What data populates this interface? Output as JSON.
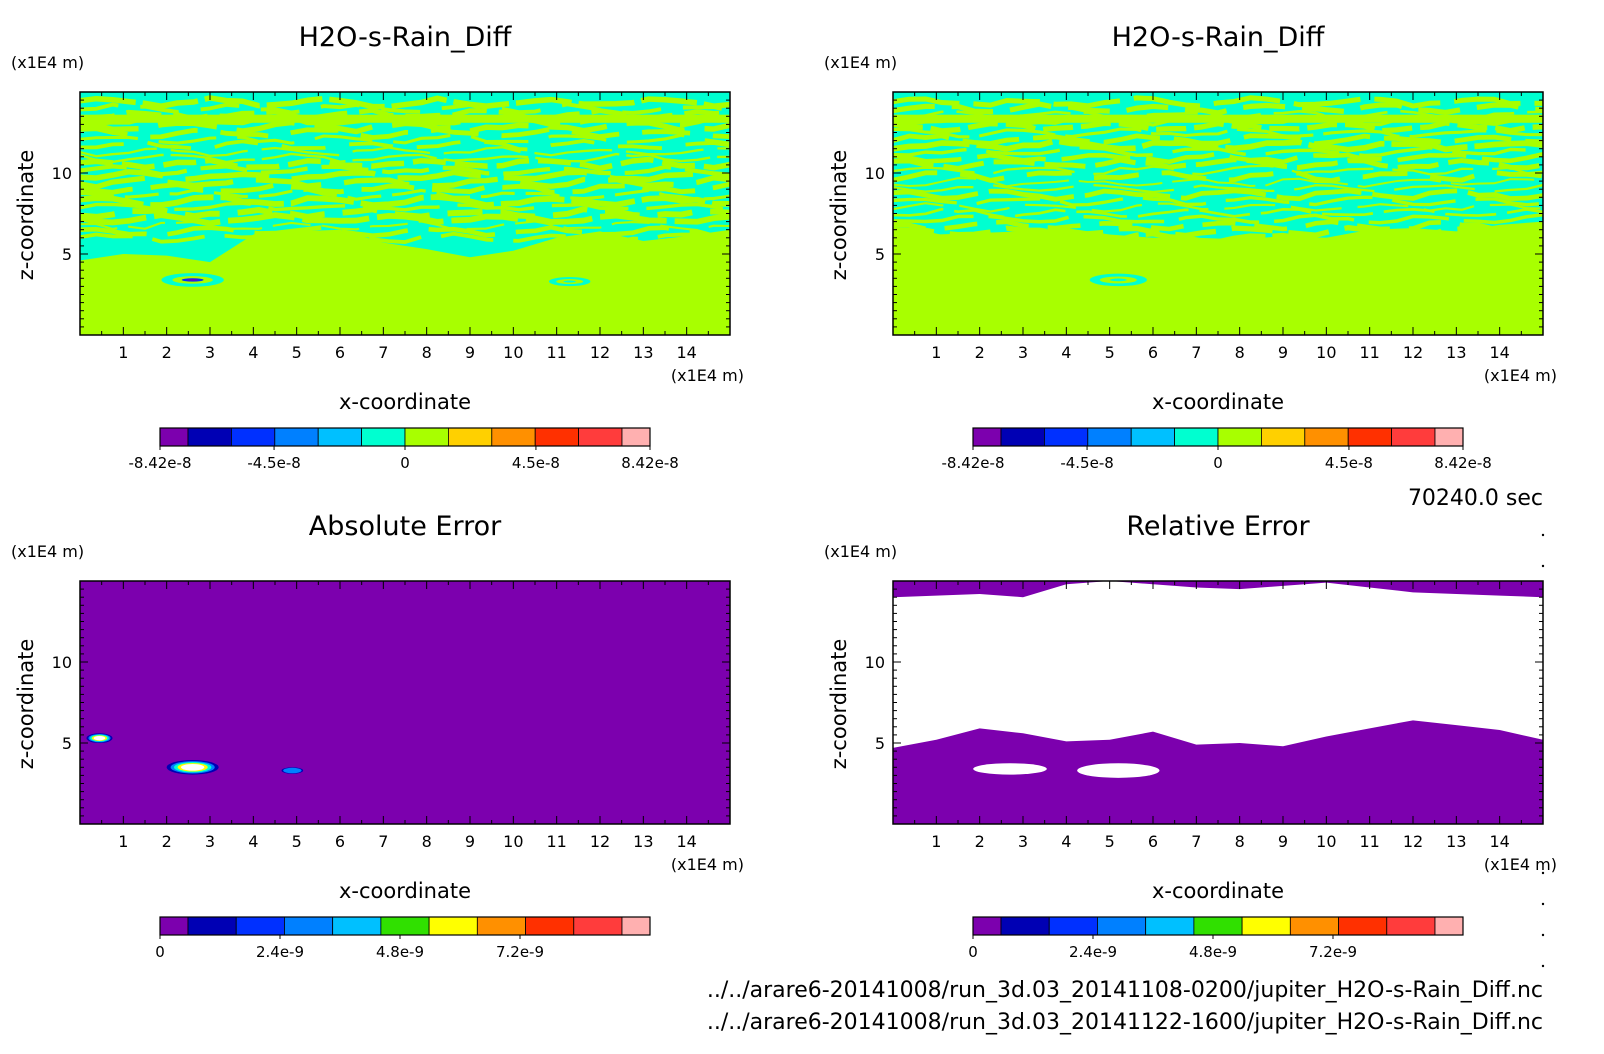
{
  "time_label": "70240.0 sec",
  "footer": {
    "line1": "../../arare6-20141008/run_3d.03_20141108-0200/jupiter_H2O-s-Rain_Diff.nc",
    "line2": "../../arare6-20141008/run_3d.03_20141122-1600/jupiter_H2O-s-Rain_Diff.nc"
  },
  "chart_data": [
    {
      "type": "heatmap",
      "title": "H2O-s-Rain_Diff",
      "xlabel": "x-coordinate",
      "ylabel": "z-coordinate",
      "x_unit": "(x1E4 m)",
      "y_unit": "(x1E4 m)",
      "xlim": [
        0,
        15
      ],
      "ylim": [
        0,
        15
      ],
      "x_ticks": [
        "1",
        "2",
        "3",
        "4",
        "5",
        "6",
        "7",
        "8",
        "9",
        "10",
        "11",
        "12",
        "13",
        "14"
      ],
      "y_ticks": [
        "5",
        "10"
      ],
      "colorbar": {
        "colors": [
          "#7c00ae",
          "#0000b4",
          "#0030ff",
          "#0080ff",
          "#00c0ff",
          "#00ffd0",
          "#a8ff00",
          "#ffd000",
          "#ff9000",
          "#ff3000",
          "#ff3c3c",
          "#ffb0b0"
        ],
        "tick_labels": [
          "-8.42e-8",
          "-4.5e-8",
          "0",
          "4.5e-8",
          "8.42e-8"
        ],
        "range": [
          -8.42e-08,
          8.42e-08
        ]
      },
      "field": {
        "background": "#a8ff00",
        "layer_color": "#00ffd0",
        "layer_bottom_z": [
          4.6,
          5.0,
          4.9,
          4.5,
          6.2,
          6.4,
          6.5,
          5.7,
          5.3,
          4.8,
          5.2,
          6.0,
          6.4,
          5.8,
          6.1,
          6.5
        ],
        "features": [
          {
            "x": 2.6,
            "z": 3.4,
            "value_sign": "negative",
            "size": 1.2
          },
          {
            "x": 11.3,
            "z": 3.3,
            "value_sign": "positive",
            "size": 0.8
          }
        ]
      }
    },
    {
      "type": "heatmap",
      "title": "H2O-s-Rain_Diff",
      "xlabel": "x-coordinate",
      "ylabel": "z-coordinate",
      "x_unit": "(x1E4 m)",
      "y_unit": "(x1E4 m)",
      "xlim": [
        0,
        15
      ],
      "ylim": [
        0,
        15
      ],
      "x_ticks": [
        "1",
        "2",
        "3",
        "4",
        "5",
        "6",
        "7",
        "8",
        "9",
        "10",
        "11",
        "12",
        "13",
        "14"
      ],
      "y_ticks": [
        "5",
        "10"
      ],
      "colorbar": {
        "colors": [
          "#7c00ae",
          "#0000b4",
          "#0030ff",
          "#0080ff",
          "#00c0ff",
          "#00ffd0",
          "#a8ff00",
          "#ffd000",
          "#ff9000",
          "#ff3000",
          "#ff3c3c",
          "#ffb0b0"
        ],
        "tick_labels": [
          "-8.42e-8",
          "-4.5e-8",
          "0",
          "4.5e-8",
          "8.42e-8"
        ],
        "range": [
          -8.42e-08,
          8.42e-08
        ]
      },
      "field": {
        "background": "#a8ff00",
        "layer_color": "#00ffd0",
        "layer_bottom_z": [
          6.4,
          6.2,
          6.3,
          6.4,
          6.6,
          6.2,
          6.0,
          6.0,
          5.9,
          6.1,
          6.0,
          6.5,
          6.6,
          6.4,
          6.8,
          7.0
        ],
        "features": [
          {
            "x": 5.2,
            "z": 3.4,
            "value_sign": "positive",
            "size": 1.1
          }
        ]
      }
    },
    {
      "type": "heatmap",
      "title": "Absolute Error",
      "xlabel": "x-coordinate",
      "ylabel": "z-coordinate",
      "x_unit": "(x1E4 m)",
      "y_unit": "(x1E4 m)",
      "xlim": [
        0,
        15
      ],
      "ylim": [
        0,
        15
      ],
      "x_ticks": [
        "1",
        "2",
        "3",
        "4",
        "5",
        "6",
        "7",
        "8",
        "9",
        "10",
        "11",
        "12",
        "13",
        "14"
      ],
      "y_ticks": [
        "5",
        "10"
      ],
      "colorbar": {
        "colors": [
          "#7c00ae",
          "#0000b4",
          "#0030ff",
          "#0080ff",
          "#00c0ff",
          "#30e000",
          "#ffff00",
          "#ff9000",
          "#ff3000",
          "#ff3c3c",
          "#ffb0b0"
        ],
        "tick_labels": [
          "0",
          "2.4e-9",
          "4.8e-9",
          "7.2e-9"
        ],
        "range": [
          0,
          9.8e-09
        ]
      },
      "field": {
        "background": "#7c00ae",
        "spots": [
          {
            "x": 0.45,
            "z": 5.3,
            "rx": 0.3,
            "rz": 0.3
          },
          {
            "x": 2.6,
            "z": 3.5,
            "rx": 0.6,
            "rz": 0.45
          },
          {
            "x": 4.9,
            "z": 3.3,
            "rx": 0.25,
            "rz": 0.2
          }
        ]
      }
    },
    {
      "type": "heatmap",
      "title": "Relative Error",
      "xlabel": "x-coordinate",
      "ylabel": "z-coordinate",
      "x_unit": "(x1E4 m)",
      "y_unit": "(x1E4 m)",
      "xlim": [
        0,
        15
      ],
      "ylim": [
        0,
        15
      ],
      "x_ticks": [
        "1",
        "2",
        "3",
        "4",
        "5",
        "6",
        "7",
        "8",
        "9",
        "10",
        "11",
        "12",
        "13",
        "14"
      ],
      "y_ticks": [
        "5",
        "10"
      ],
      "colorbar": {
        "colors": [
          "#7c00ae",
          "#0000b4",
          "#0030ff",
          "#0080ff",
          "#00c0ff",
          "#30e000",
          "#ffff00",
          "#ff9000",
          "#ff3000",
          "#ff3c3c",
          "#ffb0b0"
        ],
        "tick_labels": [
          "0",
          "2.4e-9",
          "4.8e-9",
          "7.2e-9"
        ],
        "range": [
          0,
          9.8e-09
        ]
      },
      "field": {
        "background": "#7c00ae",
        "white_region_bottom_z": [
          4.7,
          5.2,
          5.9,
          5.6,
          5.1,
          5.2,
          5.7,
          4.9,
          5.0,
          4.8,
          5.4,
          5.9,
          6.4,
          6.1,
          5.8,
          5.2
        ],
        "white_region_top_z": [
          14.0,
          14.1,
          14.2,
          14.0,
          14.8,
          15.0,
          14.8,
          14.6,
          14.5,
          14.7,
          14.9,
          14.6,
          14.3,
          14.2,
          14.1,
          14.0
        ],
        "white_patches": [
          {
            "x": 2.7,
            "z": 3.4,
            "rx": 0.85,
            "rz": 0.35
          },
          {
            "x": 5.2,
            "z": 3.3,
            "rx": 0.95,
            "rz": 0.45
          }
        ]
      }
    }
  ]
}
